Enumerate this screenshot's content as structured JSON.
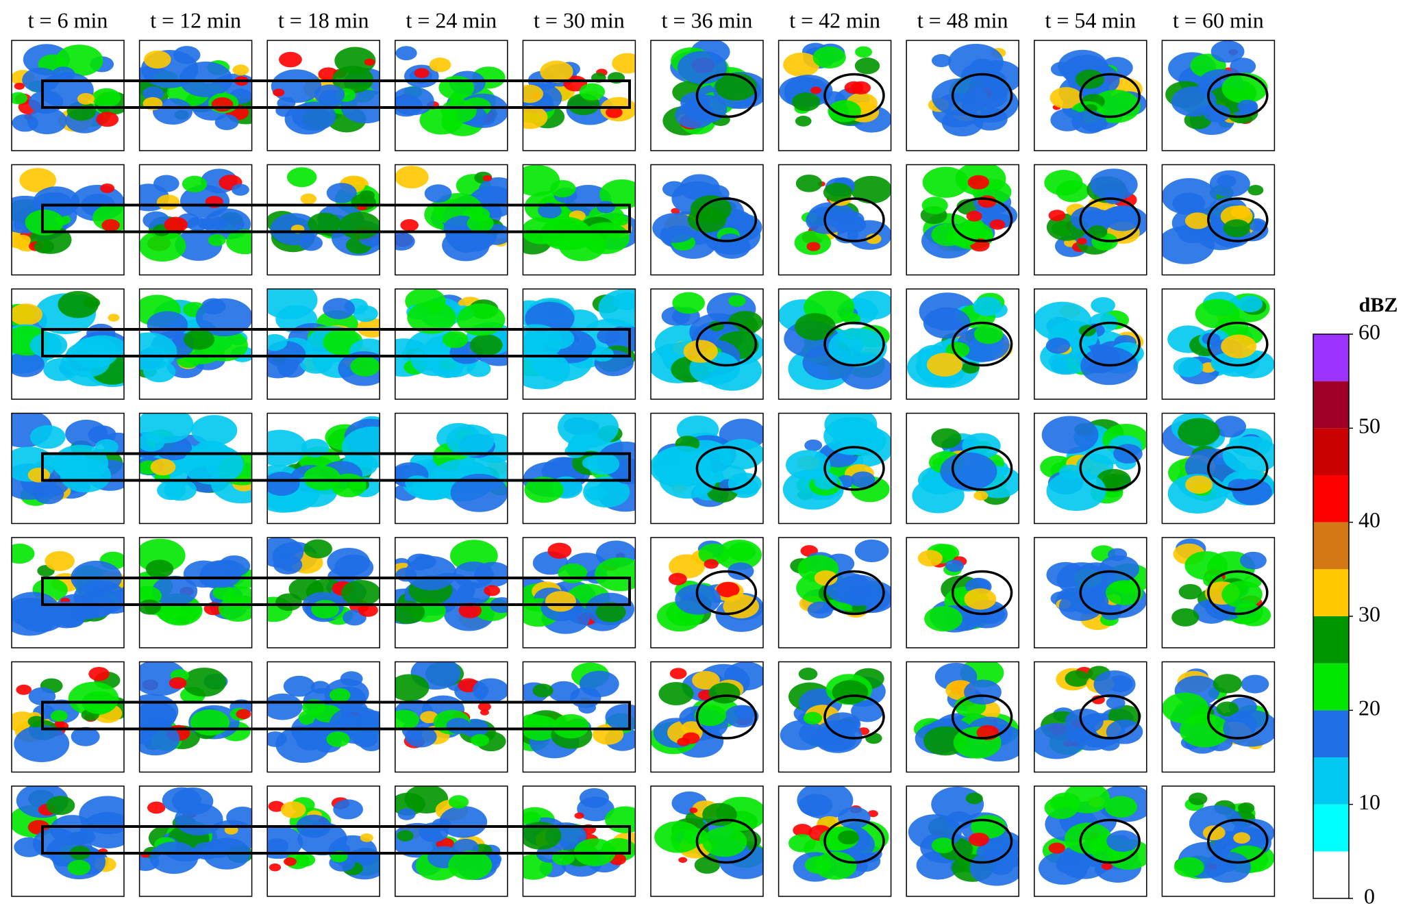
{
  "chart_data": {
    "type": "panel-grid",
    "columns": [
      "t = 6 min",
      "t = 12 min",
      "t = 18 min",
      "t = 24 min",
      "t = 30 min",
      "t = 36 min",
      "t = 42 min",
      "t = 48 min",
      "t = 54 min",
      "t = 60 min"
    ],
    "colorbar": {
      "label": "dBZ",
      "lim": [
        0,
        60
      ],
      "ticks": [
        0,
        10,
        20,
        30,
        40,
        50,
        60
      ],
      "colors": [
        "#ffffff",
        "#00ffff",
        "#00c8f0",
        "#1e6ee6",
        "#00e600",
        "#009600",
        "#ffc800",
        "#d27814",
        "#ff0000",
        "#c80000",
        "#a00028",
        "#9b32ff"
      ]
    }
  }
}
